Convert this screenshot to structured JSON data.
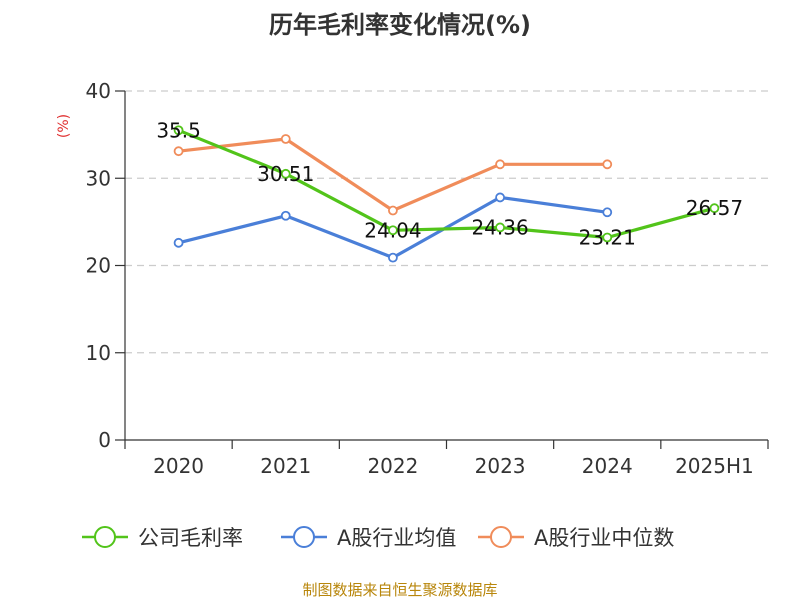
{
  "chart_data": {
    "type": "line",
    "title": "历年毛利率变化情况(%)",
    "unit_label": "(%)",
    "ylim": [
      0,
      40
    ],
    "yticks": [
      "0",
      "10",
      "20",
      "30",
      "40"
    ],
    "grid": true,
    "legend_position": "bottom",
    "categories": [
      "2020",
      "2021",
      "2022",
      "2023",
      "2024",
      "2025H1"
    ],
    "series": [
      {
        "name": "公司毛利率",
        "color": "#52c41a",
        "values": [
          35.5,
          30.51,
          24.04,
          24.36,
          23.21,
          26.57
        ],
        "labels": [
          "35.5",
          "30.51",
          "24.04",
          "24.36",
          "23.21",
          "26.57"
        ]
      },
      {
        "name": "A股行业均值",
        "color": "#4a7fd8",
        "values": [
          22.6,
          25.7,
          20.9,
          27.8,
          26.1,
          null
        ]
      },
      {
        "name": "A股行业中位数",
        "color": "#f08c5a",
        "values": [
          33.1,
          34.5,
          26.3,
          31.6,
          31.6,
          null
        ]
      }
    ]
  },
  "footer": {
    "source": "制图数据来自恒生聚源数据库"
  }
}
